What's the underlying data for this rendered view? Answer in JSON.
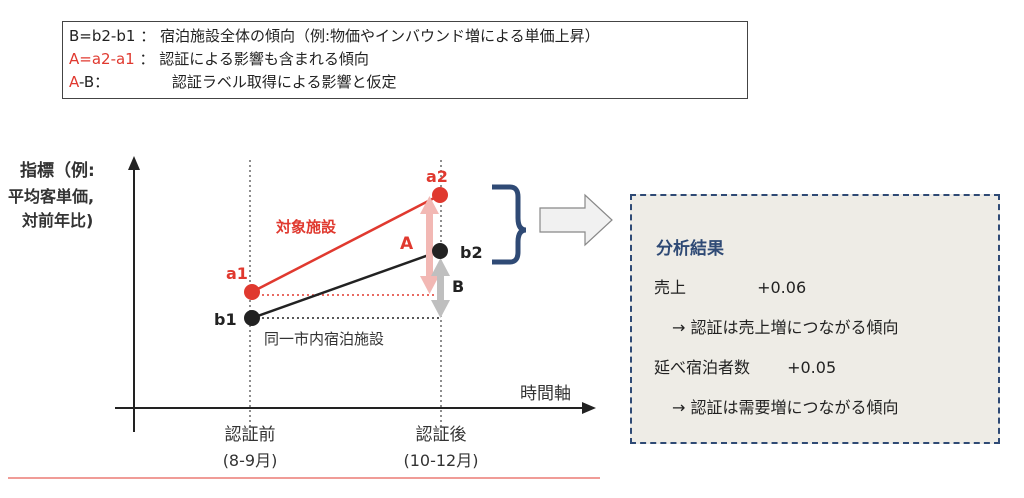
{
  "legend": {
    "line1_label": "B=b2-b1",
    "line1_sep": "：",
    "line1_text": "宿泊施設全体の傾向（例:物価やインバウンド増による単価上昇）",
    "line2_label": "A=a2-a1",
    "line2_sep": "：",
    "line2_text": "認証による影響も含まれる傾向",
    "line3_label_a": "A",
    "line3_label_rest": "-B：",
    "line3_text": "認証ラベル取得による影響と仮定"
  },
  "diagram": {
    "y_axis_label_line1": "指標（例:",
    "y_axis_label_line2": "平均客単価,",
    "y_axis_label_line3": "対前年比)",
    "x_axis_label": "時間軸",
    "before_label": "認証前",
    "before_period": "(8-9月)",
    "after_label": "認証後",
    "after_period": "(10-12月)",
    "point_a1": "a1",
    "point_a2": "a2",
    "point_b1": "b1",
    "point_b2": "b2",
    "target_label": "対象施設",
    "control_label": "同一市内宿泊施設",
    "arrow_a_label": "A",
    "arrow_b_label": "B",
    "colors": {
      "target": "#e0392f",
      "control": "#222222",
      "arrow_a": "#f2b8b4",
      "arrow_b": "#bfbfbf",
      "bracket": "#2f4a75"
    }
  },
  "results": {
    "title": "分析結果",
    "sales_label": "売上",
    "sales_value": "+0.06",
    "sales_note": "→ 認証は売上増につながる傾向",
    "nights_label": "延べ宿泊者数",
    "nights_value": "+0.05",
    "nights_note": "→ 認証は需要増につながる傾向"
  }
}
